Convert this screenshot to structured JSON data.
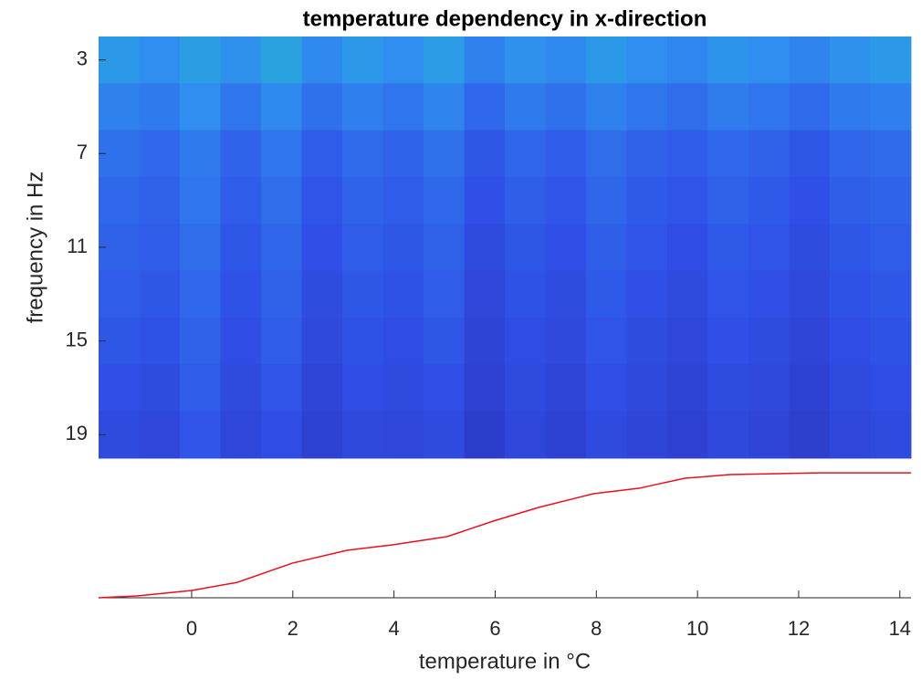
{
  "chart_data": [
    {
      "type": "heatmap",
      "title": "temperature dependency in x-direction",
      "y_label": "frequency in Hz",
      "xlim": [
        -1.84,
        14.22
      ],
      "ylim": [
        2,
        20
      ],
      "y_reversed": true,
      "yticks": [
        3,
        7,
        11,
        15,
        19
      ],
      "y_edges": [
        2,
        4,
        6,
        8,
        10,
        12,
        14,
        16,
        18,
        20
      ],
      "clim": [
        0,
        1
      ],
      "colormap": [
        "#2b27a8",
        "#2f4fe6",
        "#2f8ef0",
        "#22c0c8",
        "#8ccc5a"
      ],
      "z": [
        [
          0.55,
          0.5,
          0.58,
          0.52,
          0.6,
          0.48,
          0.55,
          0.5,
          0.57,
          0.45,
          0.52,
          0.48,
          0.55,
          0.5,
          0.47,
          0.53,
          0.5,
          0.46,
          0.52,
          0.55
        ],
        [
          0.45,
          0.42,
          0.5,
          0.4,
          0.48,
          0.38,
          0.44,
          0.4,
          0.46,
          0.35,
          0.42,
          0.38,
          0.45,
          0.4,
          0.37,
          0.43,
          0.4,
          0.36,
          0.42,
          0.44
        ],
        [
          0.38,
          0.35,
          0.42,
          0.33,
          0.4,
          0.3,
          0.36,
          0.33,
          0.38,
          0.28,
          0.34,
          0.3,
          0.37,
          0.32,
          0.3,
          0.35,
          0.32,
          0.28,
          0.34,
          0.36
        ],
        [
          0.35,
          0.32,
          0.4,
          0.3,
          0.37,
          0.27,
          0.33,
          0.3,
          0.35,
          0.25,
          0.31,
          0.27,
          0.34,
          0.29,
          0.27,
          0.32,
          0.29,
          0.25,
          0.31,
          0.33
        ],
        [
          0.32,
          0.3,
          0.37,
          0.28,
          0.34,
          0.25,
          0.3,
          0.28,
          0.32,
          0.22,
          0.28,
          0.25,
          0.31,
          0.27,
          0.24,
          0.29,
          0.27,
          0.23,
          0.28,
          0.3
        ],
        [
          0.3,
          0.28,
          0.35,
          0.26,
          0.32,
          0.23,
          0.28,
          0.26,
          0.3,
          0.2,
          0.26,
          0.23,
          0.29,
          0.25,
          0.22,
          0.27,
          0.25,
          0.21,
          0.26,
          0.28
        ],
        [
          0.28,
          0.26,
          0.32,
          0.24,
          0.3,
          0.21,
          0.26,
          0.24,
          0.28,
          0.18,
          0.24,
          0.21,
          0.27,
          0.23,
          0.2,
          0.25,
          0.23,
          0.19,
          0.24,
          0.26
        ],
        [
          0.25,
          0.23,
          0.3,
          0.22,
          0.27,
          0.19,
          0.24,
          0.22,
          0.25,
          0.16,
          0.22,
          0.19,
          0.25,
          0.21,
          0.18,
          0.23,
          0.21,
          0.17,
          0.22,
          0.24
        ],
        [
          0.22,
          0.2,
          0.27,
          0.2,
          0.24,
          0.17,
          0.21,
          0.2,
          0.22,
          0.14,
          0.2,
          0.17,
          0.22,
          0.19,
          0.16,
          0.21,
          0.19,
          0.15,
          0.2,
          0.22
        ]
      ]
    },
    {
      "type": "line",
      "x_label": "temperature in °C",
      "xlim": [
        -1.84,
        14.22
      ],
      "xticks": [
        0,
        2,
        4,
        6,
        8,
        10,
        12,
        14
      ],
      "ylim": [
        0,
        1
      ],
      "x": [
        -1.84,
        -1.08,
        0,
        0.9,
        1.99,
        3.07,
        3.97,
        5.05,
        5.96,
        6.86,
        7.94,
        8.84,
        9.75,
        10.65,
        12.45,
        14.22
      ],
      "series": [
        {
          "color": "#e8101a",
          "values": [
            0,
            0.013,
            0.052,
            0.11,
            0.248,
            0.34,
            0.379,
            0.438,
            0.549,
            0.647,
            0.745,
            0.784,
            0.856,
            0.882,
            0.895,
            0.895
          ]
        }
      ]
    }
  ]
}
